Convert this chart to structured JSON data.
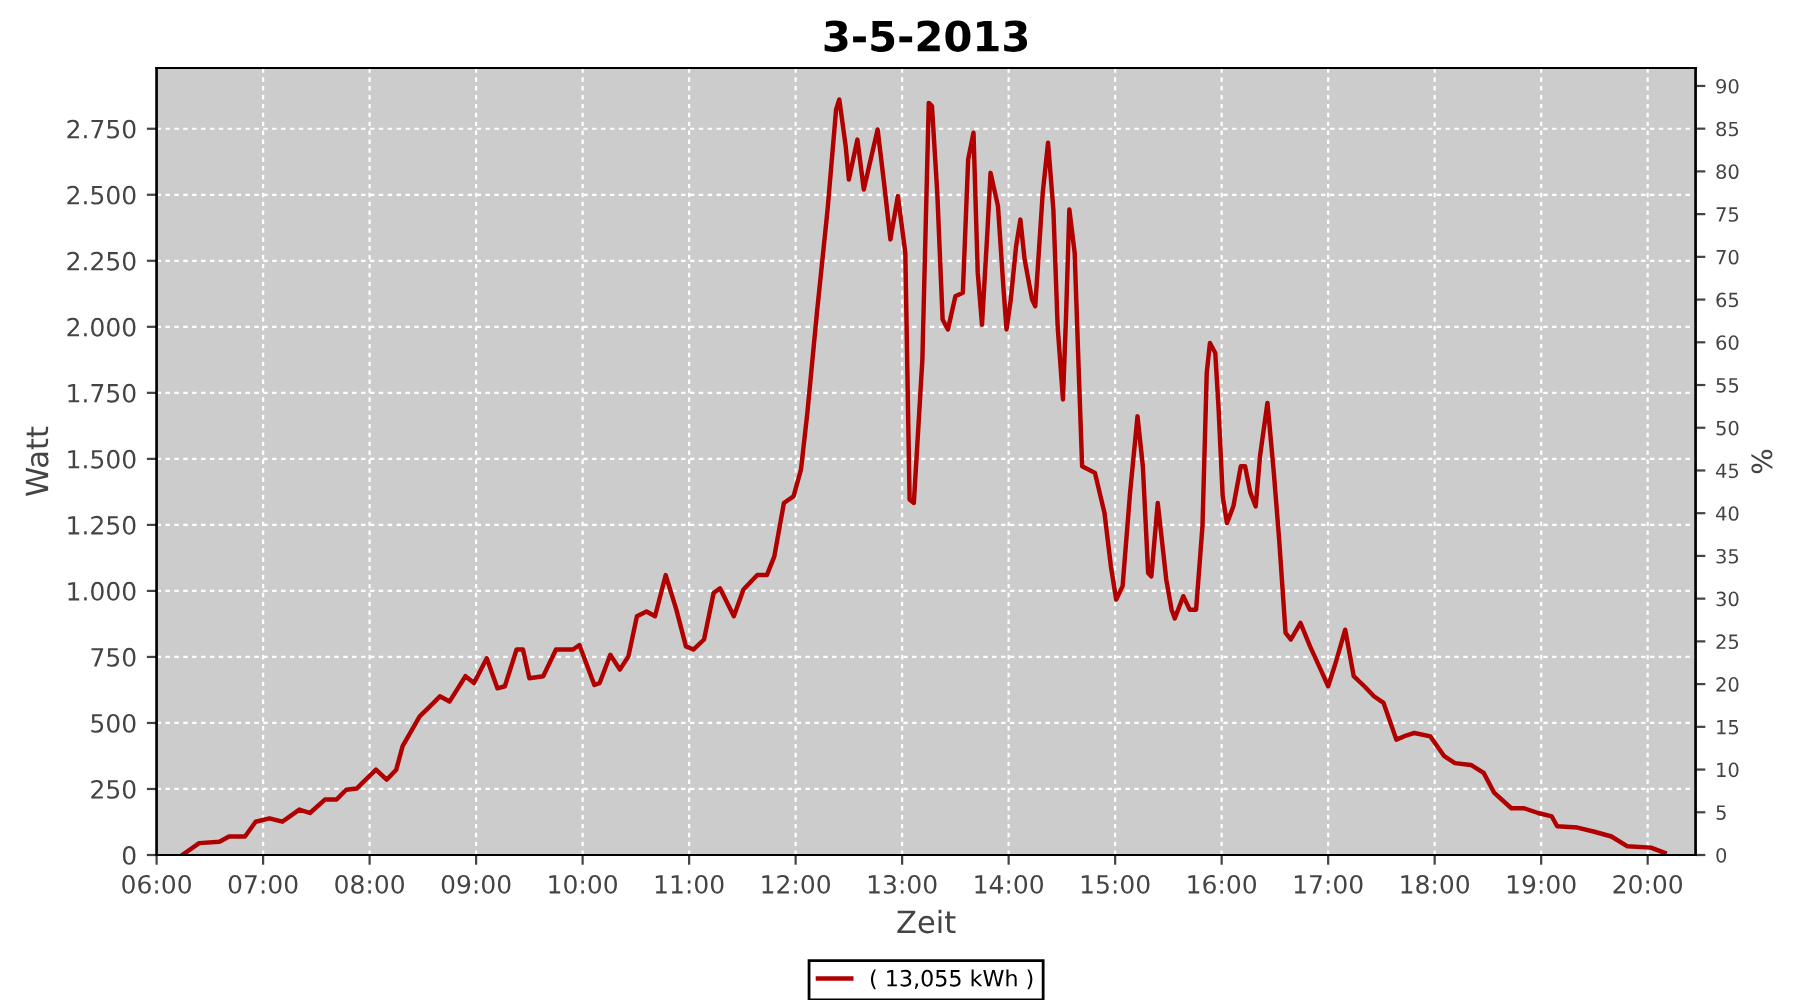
{
  "chart_data": {
    "type": "line",
    "title": "3-5-2013",
    "xlabel": "Zeit",
    "ylabel": "Watt",
    "y2label": "%",
    "xlim": [
      6.0,
      20.45
    ],
    "xticks": [
      {
        "value": 6,
        "label": "06:00"
      },
      {
        "value": 7,
        "label": "07:00"
      },
      {
        "value": 8,
        "label": "08:00"
      },
      {
        "value": 9,
        "label": "09:00"
      },
      {
        "value": 10,
        "label": "10:00"
      },
      {
        "value": 11,
        "label": "11:00"
      },
      {
        "value": 12,
        "label": "12:00"
      },
      {
        "value": 13,
        "label": "13:00"
      },
      {
        "value": 14,
        "label": "14:00"
      },
      {
        "value": 15,
        "label": "15:00"
      },
      {
        "value": 16,
        "label": "16:00"
      },
      {
        "value": 17,
        "label": "17:00"
      },
      {
        "value": 18,
        "label": "18:00"
      },
      {
        "value": 19,
        "label": "19:00"
      },
      {
        "value": 20,
        "label": "20:00"
      }
    ],
    "ylim": [
      0,
      2980
    ],
    "yticks": [
      0,
      250,
      500,
      750,
      {
        "value": 1000,
        "label": "1.000"
      },
      {
        "value": 1250,
        "label": "1.250"
      },
      {
        "value": 1500,
        "label": "1.500"
      },
      {
        "value": 1750,
        "label": "1.750"
      },
      {
        "value": 2000,
        "label": "2.000"
      },
      {
        "value": 2250,
        "label": "2.250"
      },
      {
        "value": 2500,
        "label": "2.500"
      },
      {
        "value": 2750,
        "label": "2.750"
      }
    ],
    "y2lim": [
      0,
      92.1
    ],
    "y2ticks": [
      0,
      5,
      10,
      15,
      20,
      25,
      30,
      35,
      40,
      45,
      50,
      55,
      60,
      65,
      70,
      75,
      80,
      85,
      90
    ],
    "grid": true,
    "legend": "bottom",
    "marker": "none",
    "line_style": "solid",
    "series": [
      {
        "name": "( 13,055 kWh )",
        "color": "#b00000",
        "x": [
          6.24,
          6.4,
          6.59,
          6.68,
          6.83,
          6.93,
          7.06,
          7.18,
          7.34,
          7.44,
          7.58,
          7.69,
          7.78,
          7.88,
          8.06,
          8.16,
          8.25,
          8.31,
          8.47,
          8.6,
          8.66,
          8.75,
          8.9,
          8.98,
          9.1,
          9.2,
          9.27,
          9.38,
          9.44,
          9.5,
          9.63,
          9.75,
          9.91,
          9.97,
          10.11,
          10.16,
          10.26,
          10.35,
          10.43,
          10.51,
          10.6,
          10.68,
          10.78,
          10.88,
          10.97,
          11.04,
          11.14,
          11.23,
          11.29,
          11.42,
          11.51,
          11.64,
          11.73,
          11.8,
          11.89,
          11.98,
          12.05,
          12.11,
          12.2,
          12.3,
          12.38,
          12.41,
          12.47,
          12.5,
          12.58,
          12.64,
          12.69,
          12.77,
          12.83,
          12.89,
          12.96,
          13.03,
          13.07,
          13.11,
          13.19,
          13.25,
          13.28,
          13.33,
          13.38,
          13.43,
          13.5,
          13.57,
          13.62,
          13.67,
          13.71,
          13.75,
          13.8,
          13.83,
          13.9,
          13.95,
          13.98,
          14.02,
          14.07,
          14.11,
          14.15,
          14.22,
          14.25,
          14.32,
          14.37,
          14.42,
          14.46,
          14.51,
          14.54,
          14.57,
          14.62,
          14.65,
          14.69,
          14.81,
          14.9,
          14.96,
          15.01,
          15.07,
          15.14,
          15.21,
          15.26,
          15.31,
          15.34,
          15.4,
          15.48,
          15.53,
          15.56,
          15.64,
          15.7,
          15.76,
          15.82,
          15.86,
          15.89,
          15.94,
          15.97,
          16.01,
          16.05,
          16.11,
          16.18,
          16.22,
          16.27,
          16.32,
          16.36,
          16.43,
          16.49,
          16.54,
          16.6,
          16.65,
          16.74,
          16.83,
          16.93,
          17.0,
          17.07,
          17.16,
          17.24,
          17.34,
          17.43,
          17.52,
          17.64,
          17.71,
          17.81,
          17.96,
          18.09,
          18.19,
          18.34,
          18.46,
          18.56,
          18.72,
          18.84,
          18.97,
          19.1,
          19.15,
          19.34,
          19.5,
          19.66,
          19.81,
          20.03,
          20.16
        ],
        "values": [
          0,
          45,
          50,
          70,
          70,
          126,
          139,
          126,
          172,
          159,
          210,
          210,
          247,
          252,
          323,
          285,
          323,
          412,
          525,
          576,
          601,
          581,
          677,
          651,
          745,
          631,
          639,
          778,
          778,
          669,
          677,
          778,
          778,
          795,
          644,
          651,
          758,
          702,
          752,
          904,
          922,
          904,
          1060,
          929,
          790,
          778,
          816,
          992,
          1010,
          904,
          1005,
          1060,
          1060,
          1131,
          1333,
          1358,
          1459,
          1674,
          2053,
          2444,
          2823,
          2861,
          2684,
          2558,
          2709,
          2520,
          2608,
          2747,
          2545,
          2331,
          2495,
          2280,
          1346,
          1333,
          1876,
          2848,
          2836,
          2507,
          2028,
          1990,
          2116,
          2129,
          2634,
          2735,
          2204,
          2008,
          2356,
          2583,
          2457,
          2154,
          1990,
          2103,
          2305,
          2406,
          2255,
          2103,
          2078,
          2507,
          2697,
          2444,
          2002,
          1725,
          2053,
          2444,
          2280,
          1927,
          1472,
          1447,
          1295,
          1093,
          967,
          1018,
          1371,
          1661,
          1472,
          1068,
          1055,
          1333,
          1043,
          929,
          896,
          980,
          929,
          929,
          1245,
          1826,
          1939,
          1901,
          1699,
          1358,
          1257,
          1320,
          1472,
          1472,
          1371,
          1320,
          1510,
          1712,
          1447,
          1194,
          841,
          816,
          879,
          790,
          702,
          639,
          727,
          853,
          677,
          639,
          601,
          576,
          437,
          449,
          462,
          449,
          374,
          348,
          341,
          311,
          235,
          177,
          177,
          159,
          146,
          109,
          104,
          88,
          70,
          33,
          28,
          8
        ]
      }
    ]
  }
}
